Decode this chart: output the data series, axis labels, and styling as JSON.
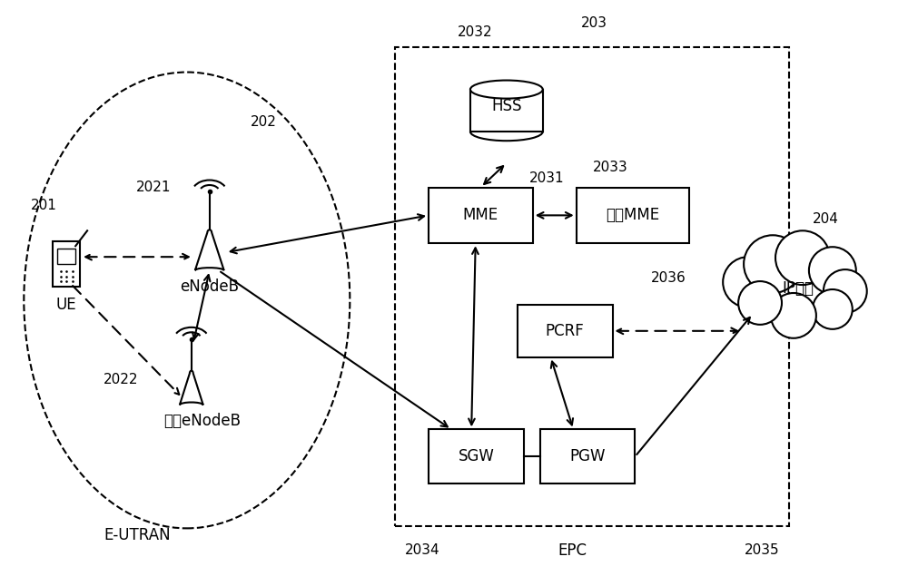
{
  "bg_color": "#ffffff",
  "labels": {
    "UE": "UE",
    "eNodeB": "eNodeB",
    "other_eNodeB": "其它eNodeB",
    "E_UTRAN": "E-UTRAN",
    "HSS": "HSS",
    "MME": "MME",
    "other_MME": "其它MME",
    "PCRF": "PCRF",
    "SGW": "SGW",
    "PGW": "PGW",
    "EPC": "EPC",
    "IP": "IP业务"
  },
  "ref_nums": {
    "n201": "201",
    "n202": "202",
    "n203": "203",
    "n204": "204",
    "n2021": "2021",
    "n2022": "2022",
    "n2031": "2031",
    "n2032": "2032",
    "n2033": "2033",
    "n2034": "2034",
    "n2035": "2035",
    "n2036": "2036"
  },
  "lw": 1.5,
  "fs": 12,
  "fs_ref": 11
}
